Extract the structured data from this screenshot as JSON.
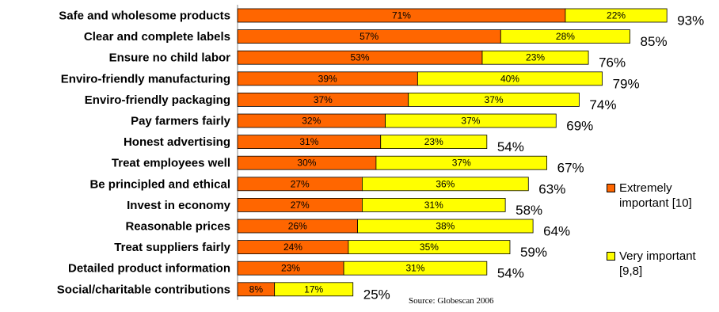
{
  "chart_data": {
    "type": "bar",
    "orientation": "horizontal",
    "stacked": true,
    "categories": [
      "Safe and wholesome products",
      "Clear and complete labels",
      "Ensure no child labor",
      "Enviro-friendly manufacturing",
      "Enviro-friendly packaging",
      "Pay farmers fairly",
      "Honest advertising",
      "Treat employees well",
      "Be principled and ethical",
      "Invest in economy",
      "Reasonable prices",
      "Treat suppliers fairly",
      "Detailed product information",
      "Social/charitable contributions"
    ],
    "series": [
      {
        "name": "Extremely important [10]",
        "color": "#FF6600",
        "values": [
          71,
          57,
          53,
          39,
          37,
          32,
          31,
          30,
          27,
          27,
          26,
          24,
          23,
          8
        ],
        "labels": [
          "71%",
          "57%",
          "53%",
          "39%",
          "37%",
          "32%",
          "31%",
          "30%",
          "27%",
          "27%",
          "26%",
          "24%",
          "23%",
          "8%"
        ]
      },
      {
        "name": "Very important [9,8]",
        "color": "#FFFF00",
        "values": [
          22,
          28,
          23,
          40,
          37,
          37,
          23,
          37,
          36,
          31,
          38,
          35,
          31,
          17
        ],
        "labels": [
          "22%",
          "28%",
          "23%",
          "40%",
          "37%",
          "37%",
          "23%",
          "37%",
          "36%",
          "31%",
          "38%",
          "35%",
          "31%",
          "17%"
        ]
      }
    ],
    "totals": [
      "93%",
      "85%",
      "76%",
      "79%",
      "74%",
      "69%",
      "54%",
      "67%",
      "63%",
      "58%",
      "64%",
      "59%",
      "54%",
      "25%"
    ],
    "legend_position": "right",
    "grid": false
  },
  "legend": {
    "extremely": "Extremely important [10]",
    "very": "Very important [9,8]"
  },
  "source": "Source: Globescan 2006"
}
